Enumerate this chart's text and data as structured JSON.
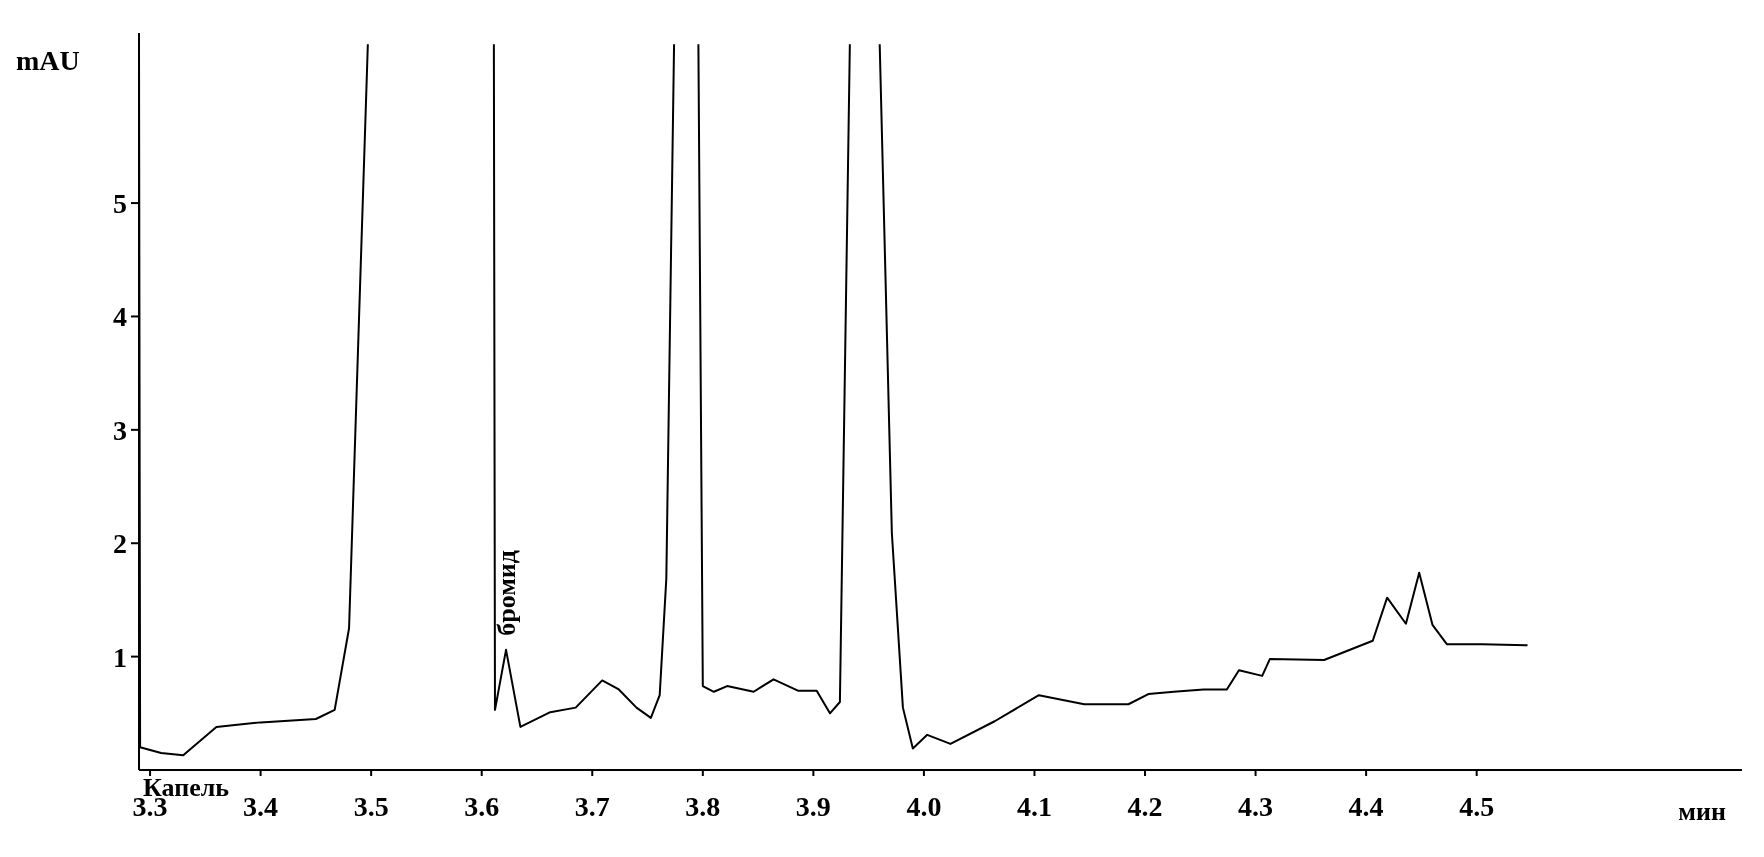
{
  "chart_data": {
    "type": "line",
    "ylabel": "mAU",
    "xlabel": "мин",
    "x": [
      3.29,
      3.291,
      3.31,
      3.33,
      3.36,
      3.4,
      3.45,
      3.467,
      3.48,
      3.497,
      3.55,
      3.611,
      3.612,
      3.622,
      3.635,
      3.662,
      3.685,
      3.709,
      3.724,
      3.74,
      3.753,
      3.761,
      3.767,
      3.774,
      3.785,
      3.796,
      3.8,
      3.81,
      3.822,
      3.846,
      3.864,
      3.886,
      3.903,
      3.915,
      3.924,
      3.933,
      3.946,
      3.96,
      3.971,
      3.981,
      3.99,
      4.003,
      4.024,
      4.064,
      4.104,
      4.145,
      4.185,
      4.203,
      4.226,
      4.253,
      4.274,
      4.285,
      4.306,
      4.313,
      4.362,
      4.406,
      4.419,
      4.436,
      4.448,
      4.46,
      4.473,
      4.505,
      4.546
    ],
    "values": [
      6.4,
      0.2,
      0.15,
      0.13,
      0.38,
      0.42,
      0.45,
      0.53,
      1.25,
      6.4,
      null,
      6.4,
      0.53,
      1.06,
      0.38,
      0.51,
      0.55,
      0.79,
      0.71,
      0.55,
      0.46,
      0.66,
      1.69,
      6.4,
      null,
      6.4,
      0.74,
      0.69,
      0.74,
      0.69,
      0.8,
      0.7,
      0.7,
      0.5,
      0.6,
      6.4,
      null,
      6.4,
      2.09,
      0.55,
      0.19,
      0.31,
      0.23,
      0.43,
      0.66,
      0.58,
      0.58,
      0.67,
      0.69,
      0.71,
      0.71,
      0.88,
      0.83,
      0.98,
      0.97,
      1.14,
      1.52,
      1.29,
      1.74,
      1.28,
      1.11,
      1.11,
      1.1
    ],
    "color": "#000000",
    "marker": "none",
    "line_style": "solid",
    "grid": false,
    "legend": false,
    "xlim": [
      3.29,
      4.74
    ],
    "xticks": [
      3.3,
      3.4,
      3.5,
      3.6,
      3.7,
      3.8,
      3.9,
      {
        "value": 4,
        "label": "4.0"
      },
      4.1,
      4.2,
      4.3,
      4.4,
      4.5
    ],
    "ylim": [
      0,
      6.5
    ],
    "yticks": [
      1,
      2,
      3,
      4,
      5
    ],
    "annotations": [
      {
        "text": "бромид",
        "x": 3.622,
        "y": 1.06
      },
      "Капель"
    ]
  }
}
